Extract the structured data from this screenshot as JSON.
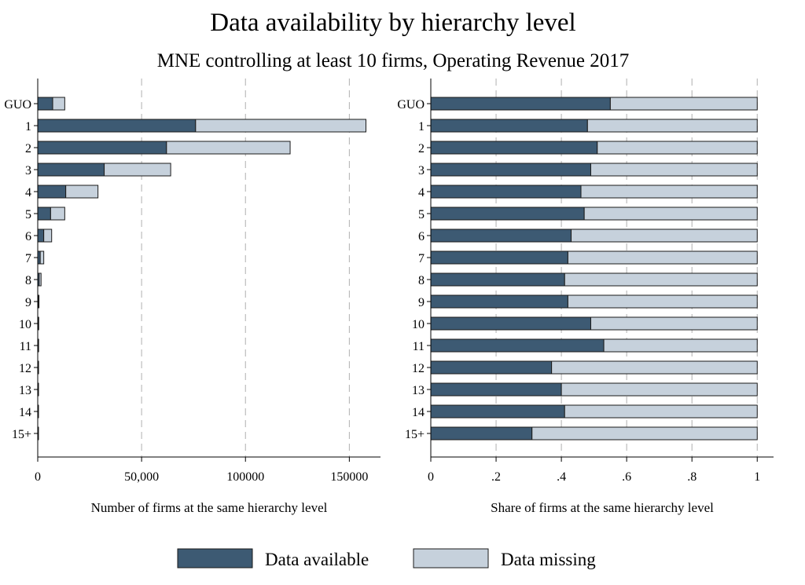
{
  "chart_data": {
    "title": "Data availability by hierarchy level",
    "subtitle": "MNE controlling at least 10 firms, Operating Revenue 2017",
    "colors": {
      "available": "#3d5a73",
      "missing": "#c6d1dc",
      "grid": "#b0b0b0"
    },
    "legend": {
      "position": "bottom",
      "items": [
        {
          "label": "Data available",
          "color": "#3d5a73"
        },
        {
          "label": "Data missing",
          "color": "#c6d1dc"
        }
      ]
    },
    "categories": [
      "GUO",
      "1",
      "2",
      "3",
      "4",
      "5",
      "6",
      "7",
      "8",
      "9",
      "10",
      "11",
      "12",
      "13",
      "14",
      "15+"
    ],
    "panels": [
      {
        "type": "bar",
        "orientation": "horizontal",
        "stacked": true,
        "xlabel": "Number of firms at the same hierarchy level",
        "xlim": [
          0,
          165000
        ],
        "xticks": [
          0,
          50000,
          100000,
          150000
        ],
        "xtick_labels": [
          "0",
          "50,000",
          "100000",
          "150000"
        ],
        "grid": "vertical dashed",
        "series": [
          {
            "name": "Data available",
            "values": [
              7200,
              76000,
              62000,
              32000,
              13500,
              6200,
              2900,
              1200,
              700,
              250,
              180,
              130,
              100,
              80,
              60,
              50
            ]
          },
          {
            "name": "Data missing",
            "values": [
              5800,
              82000,
              59500,
              32000,
              15500,
              6800,
              3800,
              1700,
              900,
              350,
              200,
              120,
              170,
              120,
              90,
              110
            ]
          }
        ]
      },
      {
        "type": "bar",
        "orientation": "horizontal",
        "stacked": true,
        "xlabel": "Share of firms at the same hierarchy level",
        "xlim": [
          0,
          1.05
        ],
        "xticks": [
          0,
          0.2,
          0.4,
          0.6,
          0.8,
          1
        ],
        "xtick_labels": [
          "0",
          ".2",
          ".4",
          ".6",
          ".8",
          "1"
        ],
        "grid": "vertical dashed",
        "series": [
          {
            "name": "Data available",
            "values": [
              0.55,
              0.48,
              0.51,
              0.49,
              0.46,
              0.47,
              0.43,
              0.42,
              0.41,
              0.42,
              0.49,
              0.53,
              0.37,
              0.4,
              0.41,
              0.31
            ]
          },
          {
            "name": "Data missing",
            "values": [
              0.45,
              0.52,
              0.49,
              0.51,
              0.54,
              0.53,
              0.57,
              0.58,
              0.59,
              0.58,
              0.51,
              0.47,
              0.63,
              0.6,
              0.59,
              0.69
            ]
          }
        ]
      }
    ]
  }
}
